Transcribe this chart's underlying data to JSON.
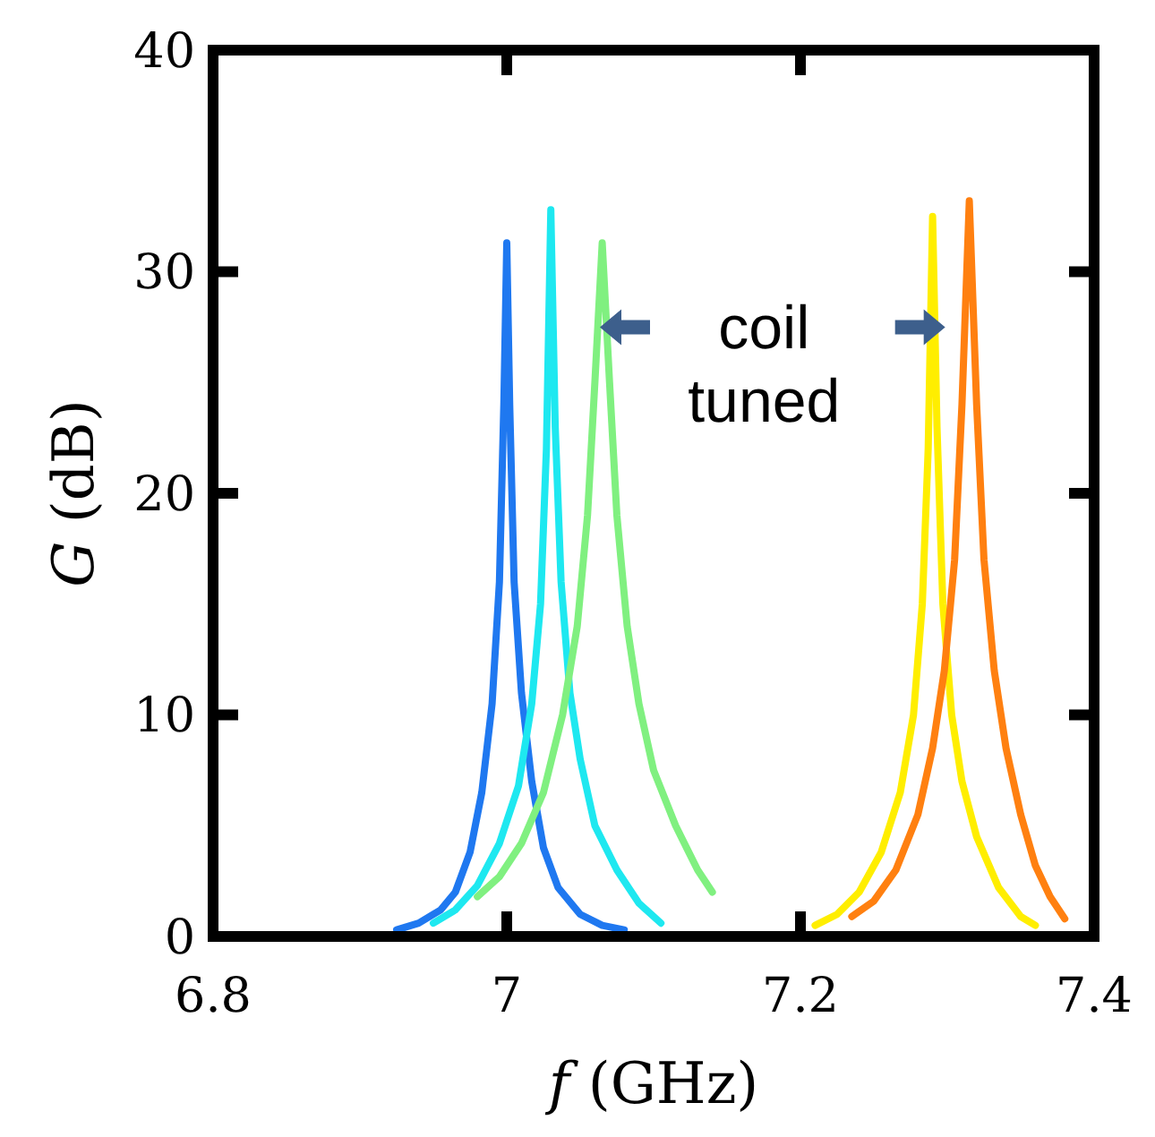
{
  "chart_data": {
    "type": "line",
    "xlabel": "f (GHz)",
    "ylabel": "G (dB)",
    "xlim": [
      6.8,
      7.4
    ],
    "ylim": [
      0,
      40
    ],
    "xticks": [
      6.8,
      7,
      7.2,
      7.4
    ],
    "yticks": [
      0,
      10,
      20,
      30,
      40
    ],
    "grid": false,
    "marker": "none",
    "line_style": "solid",
    "annotations": [
      "coil tuned"
    ],
    "series": [
      {
        "color": "#1f78f0",
        "x": [
          6.925,
          6.94,
          6.955,
          6.965,
          6.975,
          6.983,
          6.99,
          6.995,
          6.998,
          7.0,
          7.002,
          7.005,
          7.01,
          7.017,
          7.025,
          7.035,
          7.05,
          7.065,
          7.08
        ],
        "values": [
          0.3,
          0.6,
          1.2,
          2,
          3.8,
          6.5,
          10.5,
          16,
          24,
          31.3,
          24,
          16,
          11,
          7,
          4,
          2.2,
          1,
          0.5,
          0.3
        ]
      },
      {
        "color": "#1ee8f0",
        "x": [
          6.95,
          6.965,
          6.98,
          6.995,
          7.008,
          7.017,
          7.023,
          7.027,
          7.03,
          7.033,
          7.037,
          7.043,
          7.05,
          7.06,
          7.075,
          7.09,
          7.105
        ],
        "values": [
          0.6,
          1.2,
          2.3,
          4.2,
          6.8,
          10.5,
          15,
          22,
          32.8,
          23,
          16,
          11,
          8,
          5,
          3,
          1.5,
          0.6
        ]
      },
      {
        "color": "#80f080",
        "x": [
          6.98,
          6.995,
          7.01,
          7.025,
          7.038,
          7.048,
          7.055,
          7.06,
          7.065,
          7.07,
          7.075,
          7.082,
          7.09,
          7.1,
          7.115,
          7.13,
          7.14
        ],
        "values": [
          1.8,
          2.7,
          4.2,
          6.5,
          10,
          14,
          19,
          25,
          31.3,
          25,
          19,
          14,
          10.5,
          7.5,
          5,
          3,
          2
        ]
      },
      {
        "color": "#ffee00",
        "x": [
          7.21,
          7.225,
          7.24,
          7.255,
          7.268,
          7.277,
          7.283,
          7.287,
          7.29,
          7.293,
          7.297,
          7.303,
          7.31,
          7.32,
          7.335,
          7.35,
          7.36
        ],
        "values": [
          0.5,
          1,
          2,
          3.8,
          6.5,
          10,
          15,
          22,
          32.5,
          23,
          15,
          10,
          7,
          4.5,
          2.2,
          0.9,
          0.5
        ]
      },
      {
        "color": "#ff8010",
        "x": [
          7.235,
          7.25,
          7.265,
          7.28,
          7.29,
          7.298,
          7.305,
          7.31,
          7.315,
          7.32,
          7.325,
          7.332,
          7.34,
          7.35,
          7.36,
          7.37,
          7.38
        ],
        "values": [
          0.9,
          1.6,
          3,
          5.5,
          8.5,
          12,
          17,
          24,
          33.2,
          24,
          17,
          12,
          8.5,
          5.5,
          3.2,
          1.8,
          0.8
        ]
      }
    ]
  }
}
